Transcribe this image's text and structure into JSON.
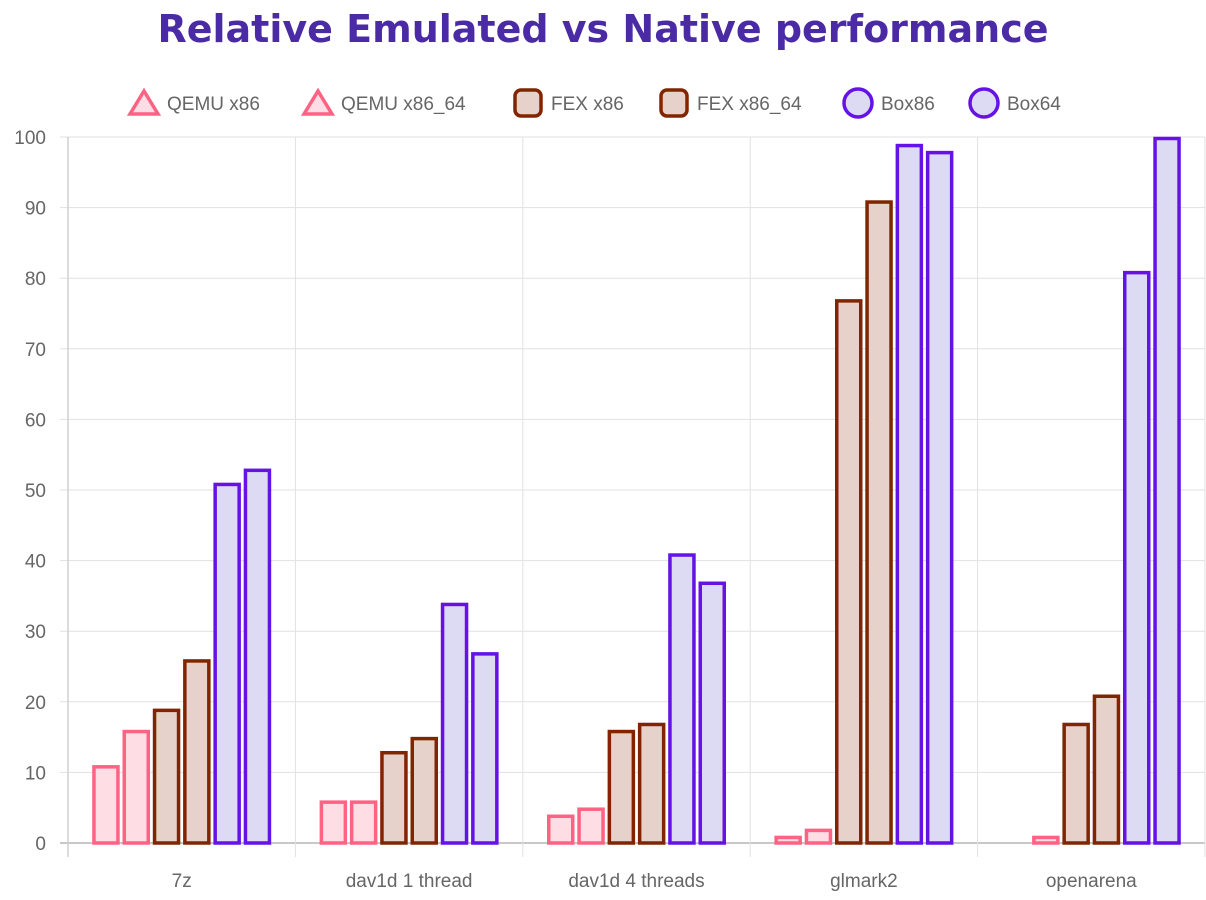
{
  "chart_data": {
    "type": "bar",
    "title": "Relative Emulated vs Native performance",
    "xlabel": "",
    "ylabel": "",
    "ylim": [
      0,
      100
    ],
    "yticks": [
      "0",
      "10",
      "20",
      "30",
      "40",
      "50",
      "60",
      "70",
      "80",
      "90",
      "100"
    ],
    "grid": true,
    "legend_position": "top",
    "categories": [
      "7z",
      "dav1d 1 thread",
      "dav1d 4 threads",
      "glmark2",
      "openarena"
    ],
    "series": [
      {
        "name": "QEMU x86",
        "values": [
          11,
          6,
          4,
          1,
          0
        ],
        "border": "#ff6384",
        "fill": "#ffdde4",
        "legend_shape": "triangle"
      },
      {
        "name": "QEMU x86_64",
        "values": [
          16,
          6,
          5,
          2,
          1
        ],
        "border": "#ff6384",
        "fill": "#ffdde4",
        "legend_shape": "triangle"
      },
      {
        "name": "FEX x86",
        "values": [
          19,
          13,
          16,
          77,
          17
        ],
        "border": "#832400",
        "fill": "#e7d2cb",
        "legend_shape": "rounded-square"
      },
      {
        "name": "FEX x86_64",
        "values": [
          26,
          15,
          17,
          91,
          21
        ],
        "border": "#832400",
        "fill": "#e7d2cb",
        "legend_shape": "rounded-square"
      },
      {
        "name": "Box86",
        "values": [
          51,
          34,
          41,
          99,
          81
        ],
        "border": "#6412e6",
        "fill": "#dddaf4",
        "legend_shape": "circle"
      },
      {
        "name": "Box64",
        "values": [
          53,
          27,
          37,
          98,
          100
        ],
        "border": "#6412e6",
        "fill": "#dddaf4",
        "legend_shape": "circle"
      }
    ]
  }
}
